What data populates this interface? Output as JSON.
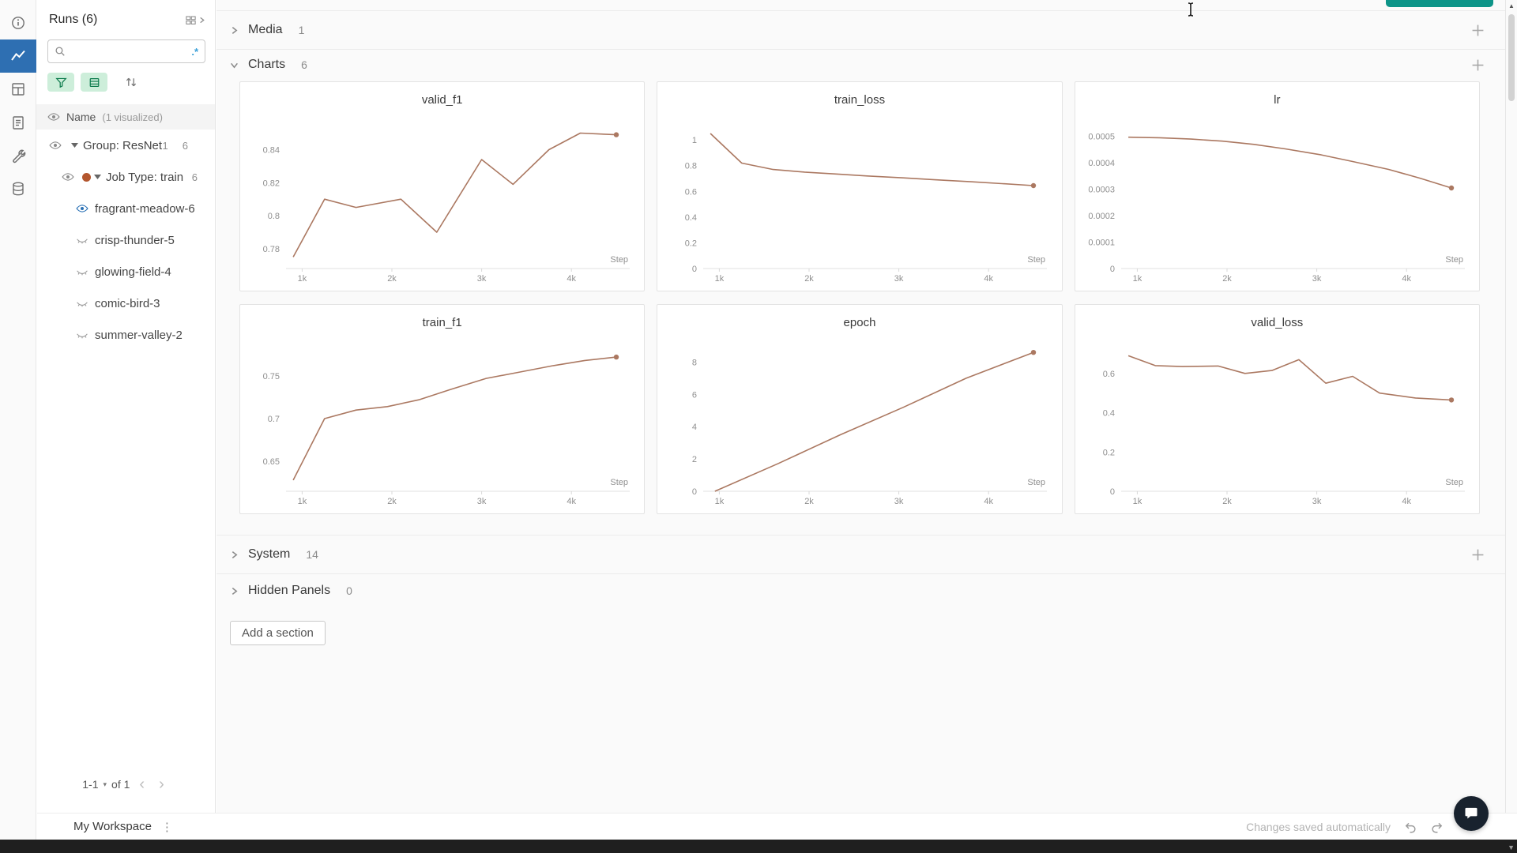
{
  "colors": {
    "chart_line": "#ab7861",
    "run_dot": "#b3562e",
    "accent_blue": "#2e6fb2",
    "eye_visible_blue": "#2970b5",
    "regex_blue": "#3aa0d8",
    "toggle_green_bg": "#cdeeda",
    "toggle_green_icon": "#0b7a4b",
    "teal_button": "#0d9488"
  },
  "icon_rail": {
    "items": [
      "info-icon",
      "line-chart-icon",
      "table-icon",
      "report-icon",
      "wrench-icon",
      "database-icon"
    ],
    "selected": "line-chart-icon"
  },
  "runs_panel": {
    "title": "Runs (6)",
    "search": {
      "placeholder": "",
      "regex_label": ".*"
    },
    "list_header": {
      "name": "Name",
      "visualized": "(1 visualized)"
    },
    "group_row": {
      "label": "Group: ResNet",
      "count_visualized": "1",
      "count_total": "6"
    },
    "job_row": {
      "label": "Job Type: train",
      "count_total": "6"
    },
    "runs": [
      {
        "name": "fragrant-meadow-6",
        "visible": true
      },
      {
        "name": "crisp-thunder-5",
        "visible": false
      },
      {
        "name": "glowing-field-4",
        "visible": false
      },
      {
        "name": "comic-bird-3",
        "visible": false
      },
      {
        "name": "summer-valley-2",
        "visible": false
      }
    ],
    "pagination": {
      "range": "1-1",
      "of_label": "of 1"
    }
  },
  "sections": {
    "media": {
      "label": "Media",
      "count": "1"
    },
    "charts": {
      "label": "Charts",
      "count": "6"
    },
    "system": {
      "label": "System",
      "count": "14"
    },
    "hidden_panels": {
      "label": "Hidden Panels",
      "count": "0"
    },
    "add_section_label": "Add a section"
  },
  "footer": {
    "workspace_label": "My Workspace",
    "autosave_status": "Changes saved automatically"
  },
  "chart_data": [
    {
      "type": "line",
      "title": "valid_f1",
      "xlabel": "Step",
      "xlim": [
        820,
        4650
      ],
      "ylim": [
        0.768,
        0.856
      ],
      "x_ticks": [
        1000,
        2000,
        3000,
        4000
      ],
      "x_tick_labels": [
        "1k",
        "2k",
        "3k",
        "4k"
      ],
      "y_ticks": [
        0.78,
        0.8,
        0.82,
        0.84
      ],
      "y_tick_labels": [
        "0.78",
        "0.8",
        "0.82",
        "0.84"
      ],
      "x": [
        900,
        1250,
        1600,
        2100,
        2500,
        3000,
        3350,
        3750,
        4100,
        4500
      ],
      "y": [
        0.775,
        0.81,
        0.805,
        0.81,
        0.79,
        0.834,
        0.819,
        0.84,
        0.85,
        0.849
      ]
    },
    {
      "type": "line",
      "title": "train_loss",
      "xlabel": "Step",
      "xlim": [
        820,
        4650
      ],
      "ylim": [
        0,
        1.13
      ],
      "x_ticks": [
        1000,
        2000,
        3000,
        4000
      ],
      "x_tick_labels": [
        "1k",
        "2k",
        "3k",
        "4k"
      ],
      "y_ticks": [
        0,
        0.2,
        0.4,
        0.6,
        0.8,
        1
      ],
      "y_tick_labels": [
        "0",
        "0.2",
        "0.4",
        "0.6",
        "0.8",
        "1"
      ],
      "x": [
        900,
        1250,
        1600,
        1950,
        2300,
        2650,
        3050,
        3400,
        3800,
        4150,
        4500
      ],
      "y": [
        1.05,
        0.82,
        0.77,
        0.75,
        0.735,
        0.72,
        0.705,
        0.69,
        0.675,
        0.66,
        0.645
      ]
    },
    {
      "type": "line",
      "title": "lr",
      "xlabel": "Step",
      "xlim": [
        820,
        4650
      ],
      "ylim": [
        0,
        0.00055
      ],
      "x_ticks": [
        1000,
        2000,
        3000,
        4000
      ],
      "x_tick_labels": [
        "1k",
        "2k",
        "3k",
        "4k"
      ],
      "y_ticks": [
        0,
        0.0001,
        0.0002,
        0.0003,
        0.0004,
        0.0005
      ],
      "y_tick_labels": [
        "0",
        "0.0001",
        "0.0002",
        "0.0003",
        "0.0004",
        "0.0005"
      ],
      "x": [
        900,
        1250,
        1600,
        1950,
        2300,
        2650,
        3050,
        3400,
        3800,
        4150,
        4500
      ],
      "y": [
        0.000497,
        0.000495,
        0.00049,
        0.000482,
        0.00047,
        0.000453,
        0.00043,
        0.000405,
        0.000375,
        0.000342,
        0.000305
      ]
    },
    {
      "type": "line",
      "title": "train_f1",
      "xlabel": "Step",
      "xlim": [
        820,
        4650
      ],
      "ylim": [
        0.615,
        0.785
      ],
      "x_ticks": [
        1000,
        2000,
        3000,
        4000
      ],
      "x_tick_labels": [
        "1k",
        "2k",
        "3k",
        "4k"
      ],
      "y_ticks": [
        0.65,
        0.7,
        0.75
      ],
      "y_tick_labels": [
        "0.65",
        "0.7",
        "0.75"
      ],
      "x": [
        900,
        1250,
        1600,
        1950,
        2300,
        2650,
        3050,
        3400,
        3800,
        4150,
        4500
      ],
      "y": [
        0.628,
        0.7,
        0.71,
        0.714,
        0.722,
        0.734,
        0.747,
        0.754,
        0.762,
        0.768,
        0.772
      ]
    },
    {
      "type": "line",
      "title": "epoch",
      "xlabel": "Step",
      "xlim": [
        820,
        4650
      ],
      "ylim": [
        0,
        9
      ],
      "x_ticks": [
        1000,
        2000,
        3000,
        4000
      ],
      "x_tick_labels": [
        "1k",
        "2k",
        "3k",
        "4k"
      ],
      "y_ticks": [
        0,
        2,
        4,
        6,
        8
      ],
      "y_tick_labels": [
        "0",
        "2",
        "4",
        "6",
        "8"
      ],
      "x": [
        950,
        1650,
        2350,
        3050,
        3750,
        4500
      ],
      "y": [
        0,
        1.7,
        3.5,
        5.2,
        7,
        8.6
      ]
    },
    {
      "type": "line",
      "title": "valid_loss",
      "xlabel": "Step",
      "xlim": [
        820,
        4650
      ],
      "ylim": [
        0,
        0.74
      ],
      "x_ticks": [
        1000,
        2000,
        3000,
        4000
      ],
      "x_tick_labels": [
        "1k",
        "2k",
        "3k",
        "4k"
      ],
      "y_ticks": [
        0,
        0.2,
        0.4,
        0.6
      ],
      "y_tick_labels": [
        "0",
        "0.2",
        "0.4",
        "0.6"
      ],
      "x": [
        900,
        1200,
        1500,
        1900,
        2200,
        2500,
        2800,
        3100,
        3400,
        3700,
        4100,
        4500
      ],
      "y": [
        0.69,
        0.64,
        0.635,
        0.638,
        0.6,
        0.615,
        0.67,
        0.55,
        0.585,
        0.5,
        0.475,
        0.465
      ]
    }
  ]
}
